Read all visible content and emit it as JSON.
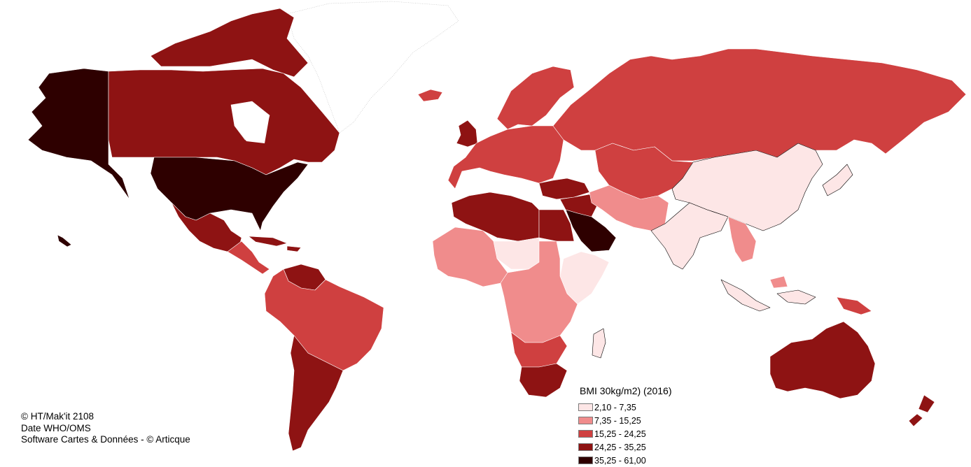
{
  "legend": {
    "title": "BMI 30kg/m2) (2016)",
    "classes": [
      {
        "label": "2,10 - 7,35",
        "color": "#fde6e6"
      },
      {
        "label": "7,35 - 15,25",
        "color": "#f08c8c"
      },
      {
        "label": "15,25 - 24,25",
        "color": "#cf4040"
      },
      {
        "label": "24,25 - 35,25",
        "color": "#8e1313"
      },
      {
        "label": "35,25 - 61,00",
        "color": "#2e0000"
      }
    ]
  },
  "credits": {
    "line1": "© HT/Mak'it 2108",
    "line2": "Date WHO/OMS",
    "line3": "Software Cartes & Données - © Articque"
  },
  "regions": [
    {
      "name": "Alaska",
      "class": 4
    },
    {
      "name": "United States",
      "class": 4
    },
    {
      "name": "Canada",
      "class": 3
    },
    {
      "name": "Canadian Arctic",
      "class": 3
    },
    {
      "name": "Greenland",
      "class": null
    },
    {
      "name": "Mexico",
      "class": 3
    },
    {
      "name": "Central America",
      "class": 2
    },
    {
      "name": "Caribbean",
      "class": 3
    },
    {
      "name": "Venezuela",
      "class": 3
    },
    {
      "name": "South America",
      "class": 2
    },
    {
      "name": "Southern Cone",
      "class": 3
    },
    {
      "name": "Iceland",
      "class": 2
    },
    {
      "name": "United Kingdom",
      "class": 3
    },
    {
      "name": "Western Europe",
      "class": 2
    },
    {
      "name": "Scandinavia",
      "class": 2
    },
    {
      "name": "Russia",
      "class": 2
    },
    {
      "name": "Kazakhstan & Central Asia",
      "class": 2
    },
    {
      "name": "Turkey",
      "class": 3
    },
    {
      "name": "Middle East",
      "class": 3
    },
    {
      "name": "Saudi Arabia & Gulf",
      "class": 4
    },
    {
      "name": "North Africa",
      "class": 3
    },
    {
      "name": "Egypt",
      "class": 3
    },
    {
      "name": "West Africa",
      "class": 1
    },
    {
      "name": "Sahel",
      "class": 0
    },
    {
      "name": "Horn of Africa",
      "class": 0
    },
    {
      "name": "Central & East Africa",
      "class": 1
    },
    {
      "name": "Southern Africa",
      "class": 2
    },
    {
      "name": "South Africa",
      "class": 3
    },
    {
      "name": "Madagascar",
      "class": 0
    },
    {
      "name": "Iran & Pakistan",
      "class": 1
    },
    {
      "name": "China & Mongolia",
      "class": 0
    },
    {
      "name": "South Asia",
      "class": 0
    },
    {
      "name": "Southeast Asia",
      "class": 1
    },
    {
      "name": "Japan",
      "class": 0
    },
    {
      "name": "Indonesia",
      "class": 0
    },
    {
      "name": "Papua New Guinea",
      "class": 2
    },
    {
      "name": "Australia",
      "class": 3
    },
    {
      "name": "New Zealand",
      "class": 3
    },
    {
      "name": "Hawaii",
      "class": 4
    }
  ]
}
